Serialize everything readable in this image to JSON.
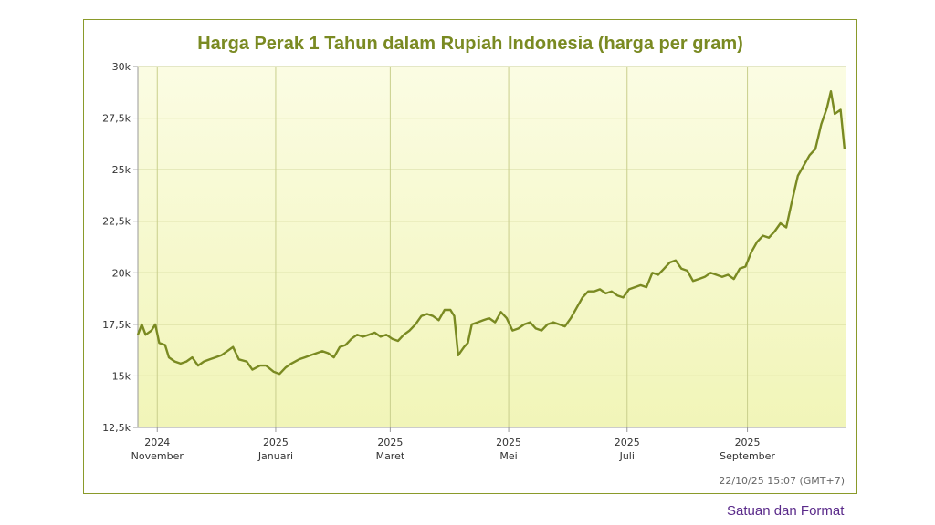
{
  "chart_data": {
    "type": "line",
    "title": "Harga Perak 1 Tahun dalam Rupiah Indonesia (harga per gram)",
    "ylim": [
      12500,
      30000
    ],
    "yticks": [
      {
        "value": 12500,
        "label": "12,5k"
      },
      {
        "value": 15000,
        "label": "15k"
      },
      {
        "value": 17500,
        "label": "17,5k"
      },
      {
        "value": 20000,
        "label": "20k"
      },
      {
        "value": 22500,
        "label": "22,5k"
      },
      {
        "value": 25000,
        "label": "25k"
      },
      {
        "value": 27500,
        "label": "27,5k"
      },
      {
        "value": 30000,
        "label": "30k"
      }
    ],
    "xlim": [
      "2024-10-22",
      "2025-10-22"
    ],
    "xticks": [
      {
        "date": "2024-11-01",
        "year": "2024",
        "month": "November"
      },
      {
        "date": "2025-01-01",
        "year": "2025",
        "month": "Januari"
      },
      {
        "date": "2025-03-01",
        "year": "2025",
        "month": "Maret"
      },
      {
        "date": "2025-05-01",
        "year": "2025",
        "month": "Mei"
      },
      {
        "date": "2025-07-01",
        "year": "2025",
        "month": "Juli"
      },
      {
        "date": "2025-09-01",
        "year": "2025",
        "month": "September"
      }
    ],
    "series": [
      {
        "color": "#7a8a22",
        "points": [
          [
            "2024-10-22",
            17000
          ],
          [
            "2024-10-24",
            17500
          ],
          [
            "2024-10-26",
            17000
          ],
          [
            "2024-10-29",
            17200
          ],
          [
            "2024-10-31",
            17500
          ],
          [
            "2024-11-02",
            16600
          ],
          [
            "2024-11-05",
            16500
          ],
          [
            "2024-11-07",
            15900
          ],
          [
            "2024-11-10",
            15700
          ],
          [
            "2024-11-13",
            15600
          ],
          [
            "2024-11-16",
            15700
          ],
          [
            "2024-11-19",
            15900
          ],
          [
            "2024-11-22",
            15500
          ],
          [
            "2024-11-25",
            15700
          ],
          [
            "2024-11-28",
            15800
          ],
          [
            "2024-12-01",
            15900
          ],
          [
            "2024-12-04",
            16000
          ],
          [
            "2024-12-07",
            16200
          ],
          [
            "2024-12-10",
            16400
          ],
          [
            "2024-12-13",
            15800
          ],
          [
            "2024-12-17",
            15700
          ],
          [
            "2024-12-20",
            15300
          ],
          [
            "2024-12-24",
            15500
          ],
          [
            "2024-12-27",
            15500
          ],
          [
            "2024-12-31",
            15200
          ],
          [
            "2025-01-03",
            15100
          ],
          [
            "2025-01-06",
            15400
          ],
          [
            "2025-01-09",
            15600
          ],
          [
            "2025-01-13",
            15800
          ],
          [
            "2025-01-16",
            15900
          ],
          [
            "2025-01-19",
            16000
          ],
          [
            "2025-01-22",
            16100
          ],
          [
            "2025-01-25",
            16200
          ],
          [
            "2025-01-28",
            16100
          ],
          [
            "2025-01-31",
            15900
          ],
          [
            "2025-02-03",
            16400
          ],
          [
            "2025-02-06",
            16500
          ],
          [
            "2025-02-09",
            16800
          ],
          [
            "2025-02-12",
            17000
          ],
          [
            "2025-02-15",
            16900
          ],
          [
            "2025-02-18",
            17000
          ],
          [
            "2025-02-21",
            17100
          ],
          [
            "2025-02-24",
            16900
          ],
          [
            "2025-02-27",
            17000
          ],
          [
            "2025-03-02",
            16800
          ],
          [
            "2025-03-05",
            16700
          ],
          [
            "2025-03-08",
            17000
          ],
          [
            "2025-03-11",
            17200
          ],
          [
            "2025-03-14",
            17500
          ],
          [
            "2025-03-17",
            17900
          ],
          [
            "2025-03-20",
            18000
          ],
          [
            "2025-03-23",
            17900
          ],
          [
            "2025-03-26",
            17700
          ],
          [
            "2025-03-29",
            18200
          ],
          [
            "2025-04-01",
            18200
          ],
          [
            "2025-04-03",
            17900
          ],
          [
            "2025-04-05",
            16000
          ],
          [
            "2025-04-08",
            16400
          ],
          [
            "2025-04-10",
            16600
          ],
          [
            "2025-04-12",
            17500
          ],
          [
            "2025-04-15",
            17600
          ],
          [
            "2025-04-18",
            17700
          ],
          [
            "2025-04-21",
            17800
          ],
          [
            "2025-04-24",
            17600
          ],
          [
            "2025-04-27",
            18100
          ],
          [
            "2025-04-30",
            17800
          ],
          [
            "2025-05-03",
            17200
          ],
          [
            "2025-05-06",
            17300
          ],
          [
            "2025-05-09",
            17500
          ],
          [
            "2025-05-12",
            17600
          ],
          [
            "2025-05-15",
            17300
          ],
          [
            "2025-05-18",
            17200
          ],
          [
            "2025-05-21",
            17500
          ],
          [
            "2025-05-24",
            17600
          ],
          [
            "2025-05-27",
            17500
          ],
          [
            "2025-05-30",
            17400
          ],
          [
            "2025-06-02",
            17800
          ],
          [
            "2025-06-05",
            18300
          ],
          [
            "2025-06-08",
            18800
          ],
          [
            "2025-06-11",
            19100
          ],
          [
            "2025-06-14",
            19100
          ],
          [
            "2025-06-17",
            19200
          ],
          [
            "2025-06-20",
            19000
          ],
          [
            "2025-06-23",
            19100
          ],
          [
            "2025-06-26",
            18900
          ],
          [
            "2025-06-29",
            18800
          ],
          [
            "2025-07-02",
            19200
          ],
          [
            "2025-07-05",
            19300
          ],
          [
            "2025-07-08",
            19400
          ],
          [
            "2025-07-11",
            19300
          ],
          [
            "2025-07-14",
            20000
          ],
          [
            "2025-07-17",
            19900
          ],
          [
            "2025-07-20",
            20200
          ],
          [
            "2025-07-23",
            20500
          ],
          [
            "2025-07-26",
            20600
          ],
          [
            "2025-07-29",
            20200
          ],
          [
            "2025-08-01",
            20100
          ],
          [
            "2025-08-04",
            19600
          ],
          [
            "2025-08-07",
            19700
          ],
          [
            "2025-08-10",
            19800
          ],
          [
            "2025-08-13",
            20000
          ],
          [
            "2025-08-16",
            19900
          ],
          [
            "2025-08-19",
            19800
          ],
          [
            "2025-08-22",
            19900
          ],
          [
            "2025-08-25",
            19700
          ],
          [
            "2025-08-28",
            20200
          ],
          [
            "2025-08-31",
            20300
          ],
          [
            "2025-09-03",
            21000
          ],
          [
            "2025-09-06",
            21500
          ],
          [
            "2025-09-09",
            21800
          ],
          [
            "2025-09-12",
            21700
          ],
          [
            "2025-09-15",
            22000
          ],
          [
            "2025-09-18",
            22400
          ],
          [
            "2025-09-21",
            22200
          ],
          [
            "2025-09-24",
            23500
          ],
          [
            "2025-09-27",
            24700
          ],
          [
            "2025-09-30",
            25200
          ],
          [
            "2025-10-03",
            25700
          ],
          [
            "2025-10-06",
            26000
          ],
          [
            "2025-10-09",
            27200
          ],
          [
            "2025-10-12",
            28000
          ],
          [
            "2025-10-14",
            28800
          ],
          [
            "2025-10-16",
            27700
          ],
          [
            "2025-10-19",
            27900
          ],
          [
            "2025-10-21",
            26000
          ]
        ]
      }
    ],
    "grid": true,
    "timestamp": "22/10/25 15:07 (GMT+7)"
  },
  "footer": {
    "units_link": "Satuan dan Format"
  }
}
